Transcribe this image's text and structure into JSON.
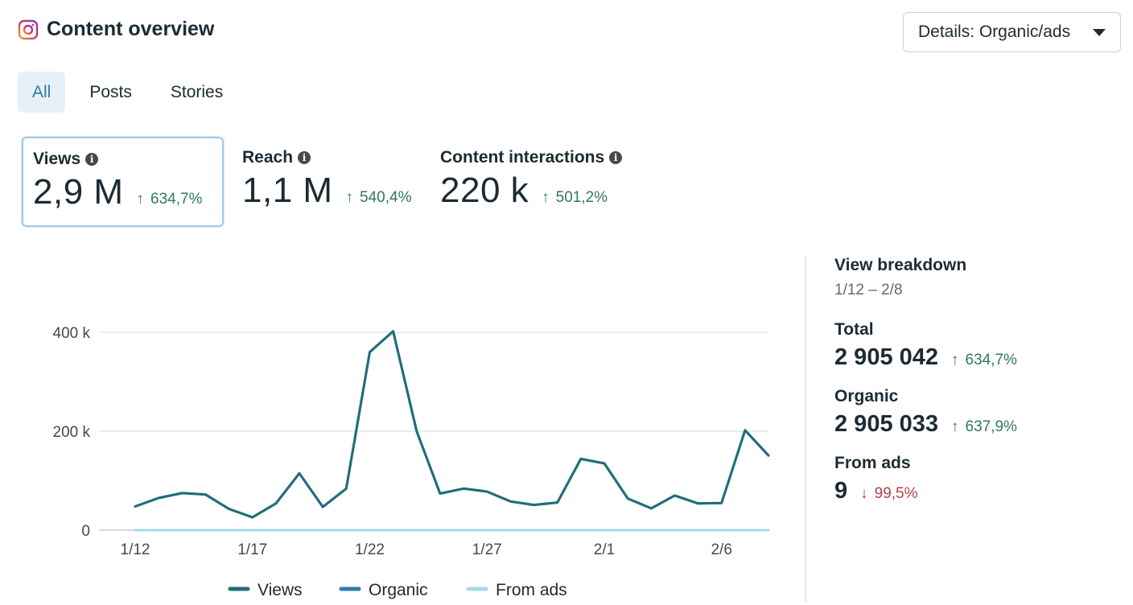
{
  "header": {
    "title": "Content overview",
    "details_dropdown": "Details: Organic/ads"
  },
  "tabs": [
    {
      "label": "All"
    },
    {
      "label": "Posts"
    },
    {
      "label": "Stories"
    }
  ],
  "metrics": [
    {
      "label": "Views",
      "value": "2,9 M",
      "change": "634,7%",
      "direction": "up"
    },
    {
      "label": "Reach",
      "value": "1,1 M",
      "change": "540,4%",
      "direction": "up"
    },
    {
      "label": "Content interactions",
      "value": "220 k",
      "change": "501,2%",
      "direction": "up"
    }
  ],
  "breakdown": {
    "title": "View breakdown",
    "range": "1/12 – 2/8",
    "total_label": "Total",
    "total_value": "2 905 042",
    "total_change": "634,7%",
    "organic_label": "Organic",
    "organic_value": "2 905 033",
    "organic_change": "637,9%",
    "ads_label": "From ads",
    "ads_value": "9",
    "ads_change": "99,5%"
  },
  "colors": {
    "views": "#1f6e79",
    "organic": "#2b7fa6",
    "ads": "#a8d8ea",
    "up": "#31795a",
    "down": "#b53f4a",
    "accent": "#2e7ca7"
  },
  "chart_data": {
    "type": "line",
    "title": "",
    "xlabel": "",
    "ylabel": "",
    "ylim": [
      0,
      400000
    ],
    "yticks": [
      0,
      200000,
      400000
    ],
    "ytick_labels": [
      "0",
      "200 k",
      "400 k"
    ],
    "x_tick_labels": [
      "1/12",
      "1/17",
      "1/22",
      "1/27",
      "2/1",
      "2/6"
    ],
    "x_tick_positions": [
      0,
      5,
      10,
      15,
      20,
      25
    ],
    "categories": [
      "1/12",
      "1/13",
      "1/14",
      "1/15",
      "1/16",
      "1/17",
      "1/18",
      "1/19",
      "1/20",
      "1/21",
      "1/22",
      "1/23",
      "1/24",
      "1/25",
      "1/26",
      "1/27",
      "1/28",
      "1/29",
      "1/30",
      "1/31",
      "2/1",
      "2/2",
      "2/3",
      "2/4",
      "2/5",
      "2/6",
      "2/7",
      "2/8"
    ],
    "series": [
      {
        "name": "Views",
        "values": [
          48000,
          65000,
          75000,
          72000,
          43000,
          26000,
          54000,
          115000,
          47000,
          84000,
          360000,
          402000,
          200000,
          74000,
          84000,
          78000,
          58000,
          51000,
          56000,
          144000,
          135000,
          64000,
          44000,
          70000,
          54000,
          55000,
          202000,
          151000
        ]
      },
      {
        "name": "Organic",
        "values": [
          48000,
          65000,
          75000,
          72000,
          43000,
          26000,
          54000,
          115000,
          47000,
          84000,
          360000,
          402000,
          200000,
          74000,
          84000,
          78000,
          58000,
          51000,
          56000,
          144000,
          135000,
          64000,
          44000,
          70000,
          54000,
          55000,
          202000,
          151000
        ]
      },
      {
        "name": "From ads",
        "values": [
          1,
          0,
          1,
          0,
          1,
          0,
          0,
          1,
          0,
          0,
          1,
          0,
          0,
          0,
          1,
          0,
          0,
          0,
          1,
          0,
          0,
          0,
          1,
          0,
          0,
          0,
          1,
          0
        ]
      }
    ],
    "legend": "bottom"
  }
}
